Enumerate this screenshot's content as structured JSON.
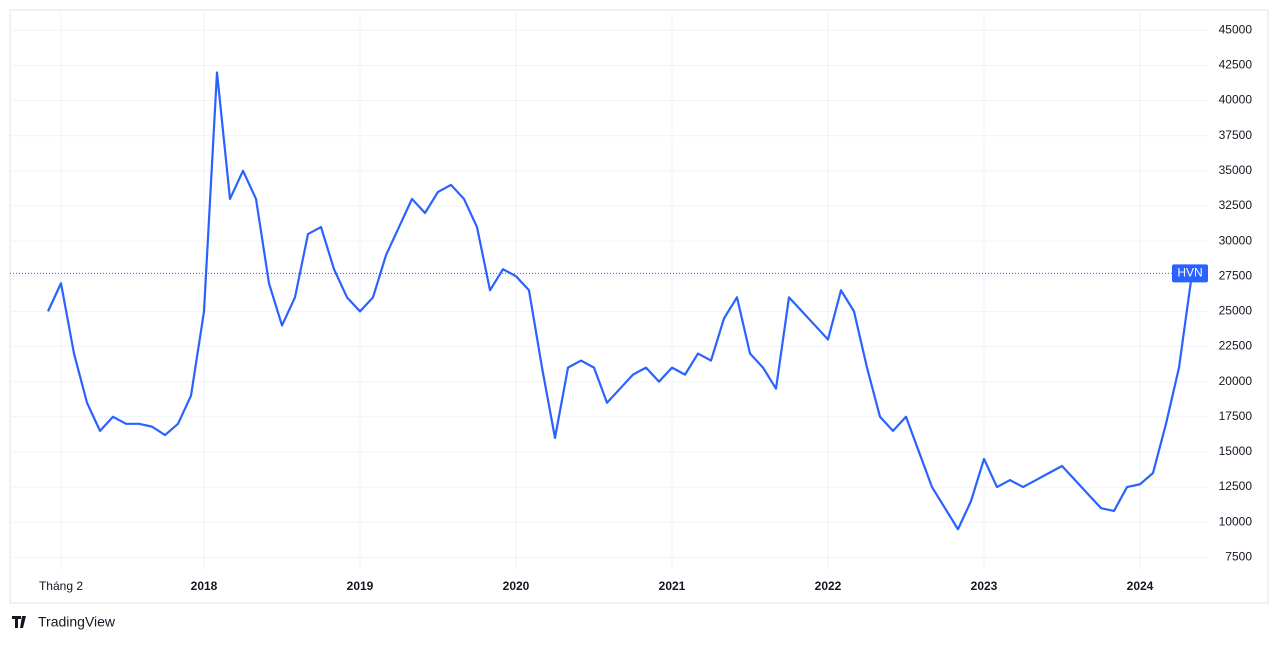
{
  "chart_data": {
    "type": "line",
    "categories": [
      null,
      "Tháng 2",
      null,
      null,
      null,
      null,
      null,
      null,
      null,
      null,
      null,
      null,
      "2018",
      null,
      null,
      null,
      null,
      null,
      null,
      null,
      null,
      null,
      null,
      null,
      "2019",
      null,
      null,
      null,
      null,
      null,
      null,
      null,
      null,
      null,
      null,
      null,
      "2020",
      null,
      null,
      null,
      null,
      null,
      null,
      null,
      null,
      null,
      null,
      null,
      "2021",
      null,
      null,
      null,
      null,
      null,
      null,
      null,
      null,
      null,
      null,
      null,
      "2022",
      null,
      null,
      null,
      null,
      null,
      null,
      null,
      null,
      null,
      null,
      null,
      "2023",
      null,
      null,
      null,
      null,
      null,
      null,
      null,
      null,
      null,
      null,
      null,
      "2024",
      null,
      null,
      null,
      null
    ],
    "series": [
      {
        "name": "HVN",
        "color": "#2962ff",
        "values": [
          25000,
          27000,
          22000,
          18500,
          16500,
          17500,
          17000,
          17000,
          16800,
          16200,
          17000,
          19000,
          25000,
          42000,
          33000,
          35000,
          33000,
          27000,
          24000,
          26000,
          30500,
          31000,
          28000,
          26000,
          25000,
          26000,
          29000,
          31000,
          33000,
          32000,
          33500,
          34000,
          33000,
          31000,
          26500,
          28000,
          27500,
          26500,
          21000,
          16000,
          21000,
          21500,
          21000,
          18500,
          19500,
          20500,
          21000,
          20000,
          21000,
          20500,
          22000,
          21500,
          24500,
          26000,
          22000,
          21000,
          19500,
          26000,
          25000,
          24000,
          23000,
          26500,
          25000,
          21000,
          17500,
          16500,
          17500,
          15000,
          12500,
          11000,
          9500,
          11500,
          14500,
          12500,
          13000,
          12500,
          13000,
          13500,
          14000,
          13000,
          12000,
          11000,
          10800,
          12500,
          12700,
          13500,
          17000,
          21000,
          27700
        ]
      }
    ],
    "ylim": [
      6600,
      46300
    ],
    "yticks": [
      7500,
      10000,
      12500,
      15000,
      17500,
      20000,
      22500,
      25000,
      27500,
      30000,
      32500,
      35000,
      37500,
      40000,
      42500,
      45000
    ],
    "grid": true
  },
  "brand": "TradingView"
}
